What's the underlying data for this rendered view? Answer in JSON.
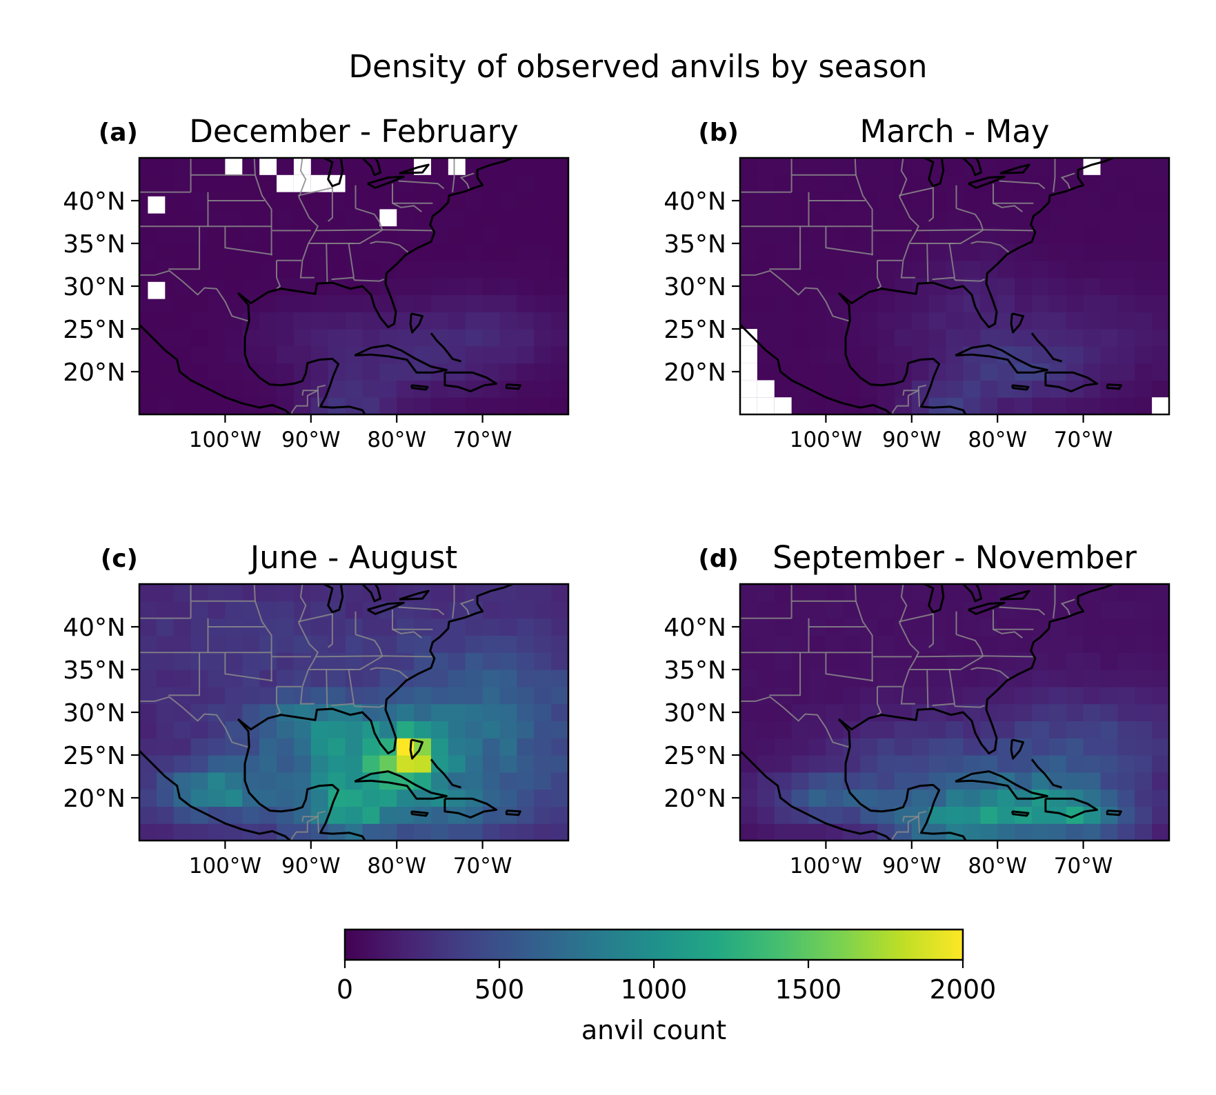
{
  "figure": {
    "title": "Density of observed anvils by season"
  },
  "map_extent": {
    "lon_min": -110,
    "lon_max": -60,
    "lat_min": 15,
    "lat_max": 45
  },
  "lat_ticks": [
    {
      "value": 40,
      "label": "40°N"
    },
    {
      "value": 35,
      "label": "35°N"
    },
    {
      "value": 30,
      "label": "30°N"
    },
    {
      "value": 25,
      "label": "25°N"
    },
    {
      "value": 20,
      "label": "20°N"
    }
  ],
  "lon_ticks": [
    {
      "value": -100,
      "label": "100°W"
    },
    {
      "value": -90,
      "label": "90°W"
    },
    {
      "value": -80,
      "label": "80°W"
    },
    {
      "value": -70,
      "label": "70°W"
    }
  ],
  "panels": [
    {
      "letter": "(a)",
      "title": "December - February",
      "base": 30,
      "hotspots": [
        {
          "lon": -80,
          "lat": 21,
          "rx": 9,
          "ry": 5,
          "amp": 170
        },
        {
          "lon": -70,
          "lat": 24,
          "rx": 10,
          "ry": 5,
          "amp": 170
        },
        {
          "lon": -86,
          "lat": 16,
          "rx": 5,
          "ry": 3,
          "amp": 230
        },
        {
          "lon": -90,
          "lat": 24,
          "rx": 8,
          "ry": 4,
          "amp": 100
        }
      ],
      "missing_cells": [
        {
          "lon": -108,
          "lat": 39.5
        },
        {
          "lon": -108,
          "lat": 29.5
        },
        {
          "lon": -99,
          "lat": 44
        },
        {
          "lon": -95,
          "lat": 44
        },
        {
          "lon": -91,
          "lat": 44
        },
        {
          "lon": -93,
          "lat": 42
        },
        {
          "lon": -91,
          "lat": 42
        },
        {
          "lon": -89,
          "lat": 42
        },
        {
          "lon": -87,
          "lat": 42
        },
        {
          "lon": -81,
          "lat": 38
        },
        {
          "lon": -77,
          "lat": 44
        },
        {
          "lon": -73,
          "lat": 44
        }
      ]
    },
    {
      "letter": "(b)",
      "title": "March - May",
      "base": 40,
      "hotspots": [
        {
          "lon": -78,
          "lat": 20,
          "rx": 8,
          "ry": 4,
          "amp": 260
        },
        {
          "lon": -86,
          "lat": 16,
          "rx": 5,
          "ry": 3,
          "amp": 260
        },
        {
          "lon": -70,
          "lat": 24,
          "rx": 12,
          "ry": 6,
          "amp": 140
        },
        {
          "lon": -88,
          "lat": 25,
          "rx": 8,
          "ry": 5,
          "amp": 90
        },
        {
          "lon": -82,
          "lat": 30,
          "rx": 6,
          "ry": 5,
          "amp": 90
        }
      ],
      "missing_cells": [
        {
          "lon": -109,
          "lat": 24
        },
        {
          "lon": -109,
          "lat": 22
        },
        {
          "lon": -109,
          "lat": 20
        },
        {
          "lon": -109,
          "lat": 18
        },
        {
          "lon": -107,
          "lat": 18
        },
        {
          "lon": -109,
          "lat": 16
        },
        {
          "lon": -107,
          "lat": 16
        },
        {
          "lon": -105,
          "lat": 16
        },
        {
          "lon": -69,
          "lat": 44
        },
        {
          "lon": -61,
          "lat": 16
        }
      ]
    },
    {
      "letter": "(c)",
      "title": "June - August",
      "base": 220,
      "hotspots": [
        {
          "lon": -78,
          "lat": 25,
          "rx": 3,
          "ry": 2.5,
          "amp": 1050
        },
        {
          "lon": -82,
          "lat": 23,
          "rx": 8,
          "ry": 6,
          "amp": 550
        },
        {
          "lon": -102,
          "lat": 21,
          "rx": 6,
          "ry": 3,
          "amp": 650
        },
        {
          "lon": -90,
          "lat": 29,
          "rx": 9,
          "ry": 3,
          "amp": 380
        },
        {
          "lon": -70,
          "lat": 28,
          "rx": 12,
          "ry": 10,
          "amp": 480
        },
        {
          "lon": -86,
          "lat": 18,
          "rx": 6,
          "ry": 3,
          "amp": 450
        },
        {
          "lon": -90,
          "lat": 23,
          "rx": 10,
          "ry": 6,
          "amp": 350
        },
        {
          "lon": -72,
          "lat": 19,
          "rx": 6,
          "ry": 3,
          "amp": 300
        },
        {
          "lon": -95,
          "lat": 38,
          "rx": 14,
          "ry": 6,
          "amp": 120
        }
      ],
      "missing_cells": []
    },
    {
      "letter": "(d)",
      "title": "September - November",
      "base": 90,
      "hotspots": [
        {
          "lon": -85,
          "lat": 17,
          "rx": 8,
          "ry": 3,
          "amp": 750
        },
        {
          "lon": -70,
          "lat": 18,
          "rx": 7,
          "ry": 3,
          "amp": 650
        },
        {
          "lon": -78,
          "lat": 20,
          "rx": 10,
          "ry": 4,
          "amp": 480
        },
        {
          "lon": -100,
          "lat": 20,
          "rx": 8,
          "ry": 3,
          "amp": 450
        },
        {
          "lon": -70,
          "lat": 26,
          "rx": 12,
          "ry": 6,
          "amp": 350
        },
        {
          "lon": -90,
          "lat": 25,
          "rx": 10,
          "ry": 5,
          "amp": 250
        }
      ],
      "missing_cells": []
    }
  ],
  "colorbar": {
    "label": "anvil count",
    "min": 0,
    "max": 2000,
    "ticks": [
      {
        "value": 0,
        "label": "0"
      },
      {
        "value": 500,
        "label": "500"
      },
      {
        "value": 1000,
        "label": "1000"
      },
      {
        "value": 1500,
        "label": "1500"
      },
      {
        "value": 2000,
        "label": "2000"
      }
    ],
    "colormap": "viridis"
  },
  "colors": {
    "coastline": "#000000",
    "borders": "#8a8a8a",
    "missing": "#ffffff"
  }
}
